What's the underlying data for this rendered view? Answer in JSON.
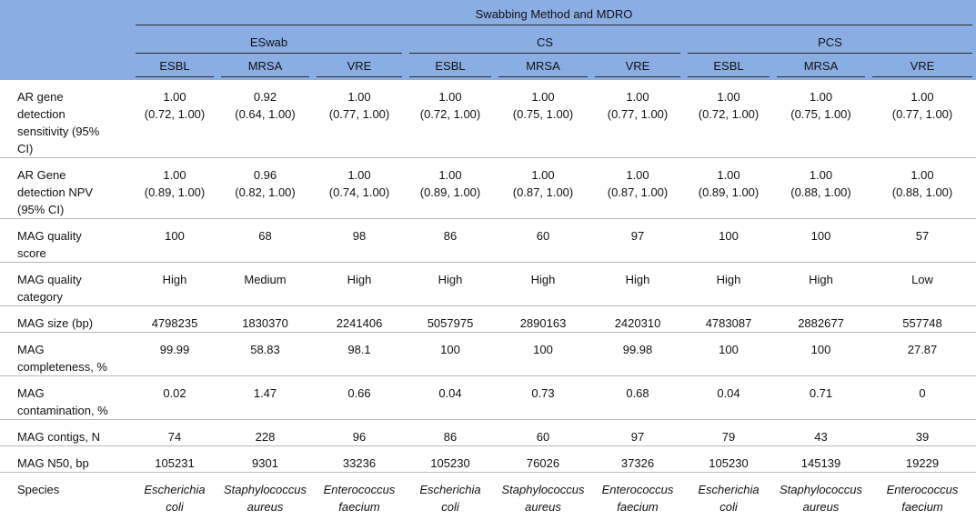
{
  "table": {
    "title": "Swabbing Method and MDRO",
    "groups": [
      {
        "name": "ESwab",
        "columns": [
          "ESBL",
          "MRSA",
          "VRE"
        ]
      },
      {
        "name": "CS",
        "columns": [
          "ESBL",
          "MRSA",
          "VRE"
        ]
      },
      {
        "name": "PCS",
        "columns": [
          "ESBL",
          "MRSA",
          "VRE"
        ]
      }
    ],
    "rows": [
      {
        "label": "AR gene detection sensitivity (95% CI)",
        "cells": [
          "1.00\n(0.72, 1.00)",
          "0.92\n(0.64, 1.00)",
          "1.00\n(0.77, 1.00)",
          "1.00\n(0.72, 1.00)",
          "1.00\n(0.75, 1.00)",
          "1.00\n(0.77, 1.00)",
          "1.00\n(0.72, 1.00)",
          "1.00\n(0.75, 1.00)",
          "1.00\n(0.77, 1.00)"
        ]
      },
      {
        "label": "AR Gene detection NPV (95% CI)",
        "cells": [
          "1.00\n(0.89, 1.00)",
          "0.96\n(0.82, 1.00)",
          "1.00\n(0.74, 1.00)",
          "1.00\n(0.89, 1.00)",
          "1.00\n(0.87, 1.00)",
          "1.00\n(0.87, 1.00)",
          "1.00\n(0.89, 1.00)",
          "1.00\n(0.88, 1.00)",
          "1.00\n(0.88, 1.00)"
        ]
      },
      {
        "label": "MAG quality score",
        "cells": [
          "100",
          "68",
          "98",
          "86",
          "60",
          "97",
          "100",
          "100",
          "57"
        ]
      },
      {
        "label": "MAG quality category",
        "cells": [
          "High",
          "Medium",
          "High",
          "High",
          "High",
          "High",
          "High",
          "High",
          "Low"
        ]
      },
      {
        "label": "MAG size (bp)",
        "cells": [
          "4798235",
          "1830370",
          "2241406",
          "5057975",
          "2890163",
          "2420310",
          "4783087",
          "2882677",
          "557748"
        ]
      },
      {
        "label": "MAG completeness, %",
        "cells": [
          "99.99",
          "58.83",
          "98.1",
          "100",
          "100",
          "99.98",
          "100",
          "100",
          "27.87"
        ]
      },
      {
        "label": "MAG contamination, %",
        "cells": [
          "0.02",
          "1.47",
          "0.66",
          "0.04",
          "0.73",
          "0.68",
          "0.04",
          "0.71",
          "0"
        ]
      },
      {
        "label": "MAG contigs, N",
        "cells": [
          "74",
          "228",
          "96",
          "86",
          "60",
          "97",
          "79",
          "43",
          "39"
        ]
      },
      {
        "label": "MAG N50, bp",
        "cells": [
          "105231",
          "9301",
          "33236",
          "105230",
          "76026",
          "37326",
          "105230",
          "145139",
          "19229"
        ]
      },
      {
        "label": "Species",
        "cells": [
          "Escherichia\ncoli",
          "Staphylococcus\naureus",
          "Enterococcus\nfaecium",
          "Escherichia\ncoli",
          "Staphylococcus\naureus",
          "Enterococcus\nfaecium",
          "Escherichia\ncoli",
          "Staphylococcus\naureus",
          "Enterococcus\nfaecium"
        ]
      }
    ]
  }
}
